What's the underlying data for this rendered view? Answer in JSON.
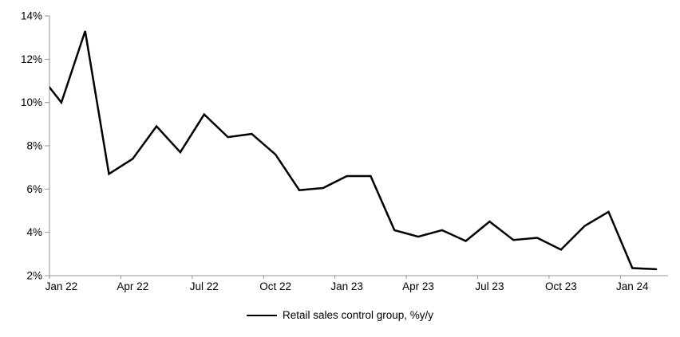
{
  "chart_data": {
    "type": "line",
    "title": "",
    "xlabel": "",
    "ylabel": "",
    "grid": false,
    "legend_position": "bottom-center",
    "axis_color": "#969696",
    "background_color": "#ffffff",
    "ylim": [
      2,
      14
    ],
    "yticks": [
      2,
      4,
      6,
      8,
      10,
      12,
      14
    ],
    "ytick_labels": [
      "2%",
      "4%",
      "6%",
      "8%",
      "10%",
      "12%",
      "14%"
    ],
    "x": [
      "Dec 21",
      "Jan 22",
      "Feb 22",
      "Mar 22",
      "Apr 22",
      "May 22",
      "Jun 22",
      "Jul 22",
      "Aug 22",
      "Sep 22",
      "Oct 22",
      "Nov 22",
      "Dec 22",
      "Jan 23",
      "Feb 23",
      "Mar 23",
      "Apr 23",
      "May 23",
      "Jun 23",
      "Jul 23",
      "Aug 23",
      "Sep 23",
      "Oct 23",
      "Nov 23",
      "Dec 23",
      "Jan 24",
      "Feb 24"
    ],
    "xtick_labels": [
      "Jan 22",
      "Apr 22",
      "Jul 22",
      "Oct 22",
      "Jan 23",
      "Apr 23",
      "Jul 23",
      "Oct 23",
      "Jan 24"
    ],
    "xtick_indices": [
      1,
      4,
      7,
      10,
      13,
      16,
      19,
      22,
      25
    ],
    "series": [
      {
        "name": "Retail sales control group, %y/y",
        "color": "#000000",
        "values": [
          11.4,
          10.0,
          13.3,
          6.7,
          7.4,
          8.9,
          7.7,
          9.45,
          8.4,
          8.55,
          7.6,
          5.95,
          6.05,
          6.6,
          6.6,
          4.1,
          3.8,
          4.1,
          3.6,
          4.5,
          3.65,
          3.75,
          3.2,
          4.3,
          4.95,
          2.35,
          2.3
        ]
      }
    ]
  },
  "legend": {
    "label": "Retail sales control group, %y/y"
  }
}
